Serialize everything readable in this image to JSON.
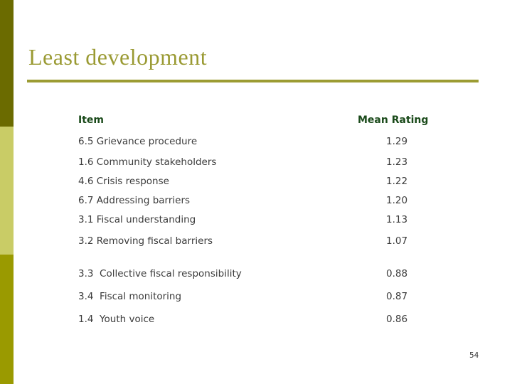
{
  "slide": {
    "title": "Least development"
  },
  "table": {
    "headers": {
      "item": "Item",
      "rating": "Mean Rating"
    },
    "rows": [
      {
        "item": "6.5 Grievance procedure",
        "value": "1.29"
      },
      {
        "item": "1.6 Community stakeholders",
        "value": "1.23"
      },
      {
        "item": "4.6 Crisis response",
        "value": "1.22"
      },
      {
        "item": "6.7 Addressing barriers",
        "value": "1.20"
      },
      {
        "item": "3.1 Fiscal understanding",
        "value": "1.13"
      },
      {
        "item": "3.2 Removing fiscal barriers",
        "value": "1.07"
      },
      {
        "item": "3.3  Collective fiscal responsibility",
        "value": "0.88"
      },
      {
        "item": "3.4  Fiscal monitoring",
        "value": "0.87"
      },
      {
        "item": "1.4  Youth voice",
        "value": "0.86"
      }
    ]
  },
  "footer": {
    "page_number": "54"
  },
  "colors": {
    "accent_bar_top": "#6b6b00",
    "accent_bar_middle": "#c9cc66",
    "accent_bar_bottom": "#9a9a00",
    "title_text": "#9a9a33",
    "title_rule": "#9c9c33",
    "header_text": "#1a4a1a",
    "body_text": "#3b3b3b",
    "background": "#ffffff"
  }
}
